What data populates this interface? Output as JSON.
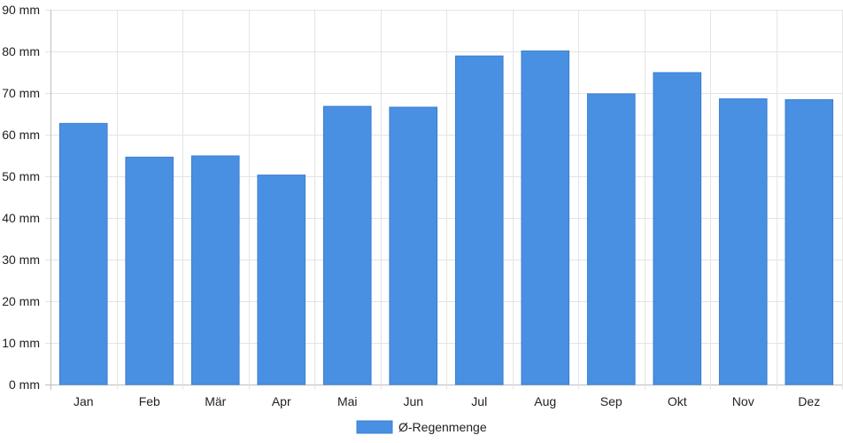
{
  "chart_data": {
    "type": "bar",
    "categories": [
      "Jan",
      "Feb",
      "Mär",
      "Apr",
      "Mai",
      "Jun",
      "Jul",
      "Aug",
      "Sep",
      "Okt",
      "Nov",
      "Dez"
    ],
    "series": [
      {
        "name": "Ø-Regenmenge",
        "values": [
          62.7,
          54.6,
          54.9,
          50.3,
          66.8,
          66.6,
          78.9,
          80.1,
          69.8,
          74.9,
          68.6,
          68.4
        ],
        "color": "#4a90e2"
      }
    ],
    "y_ticks": [
      "0 mm",
      "10 mm",
      "20 mm",
      "30 mm",
      "40 mm",
      "50 mm",
      "60 mm",
      "70 mm",
      "80 mm",
      "90 mm"
    ],
    "ylim": [
      0,
      90
    ],
    "ystep": 10,
    "grid": true,
    "legend_position": "bottom"
  }
}
